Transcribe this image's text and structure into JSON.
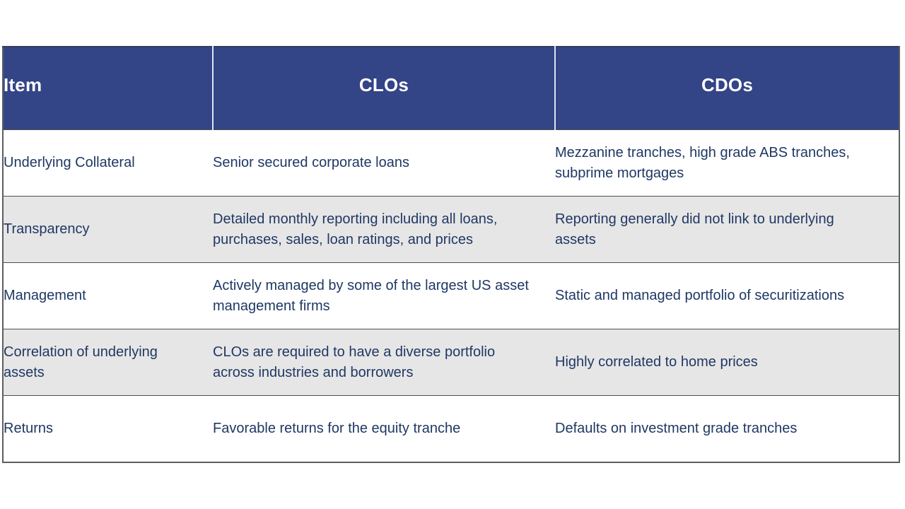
{
  "colors": {
    "header_bg": "#334487",
    "header_text": "#ffffff",
    "header_divider": "#dde3f0",
    "body_text": "#1f3864",
    "row_bg": "#ffffff",
    "row_alt_bg": "#e7e6e6",
    "border": "#5e5e5e",
    "row_line": "#4f4f4f"
  },
  "table": {
    "columns": [
      {
        "label": "Item"
      },
      {
        "label": "CLOs"
      },
      {
        "label": "CDOs"
      }
    ],
    "rows": [
      {
        "item": "Underlying Collateral",
        "clos": "Senior secured corporate loans",
        "cdos": "Mezzanine tranches, high grade ABS tranches,\nsubprime mortgages"
      },
      {
        "item": "Transparency",
        "clos": "Detailed monthly reporting including all loans,\npurchases, sales, loan ratings, and prices",
        "cdos": "Reporting generally did not link to underlying\nassets"
      },
      {
        "item": "Management",
        "clos": "Actively managed by some of the largest US asset\nmanagement firms",
        "cdos": "Static and managed portfolio of securitizations"
      },
      {
        "item": "Correlation of underlying\nassets",
        "clos": "CLOs are required to have a diverse portfolio\nacross industries and borrowers",
        "cdos": "Highly correlated to home prices"
      },
      {
        "item": "Returns",
        "clos": "Favorable returns for the equity tranche",
        "cdos": "Defaults on investment grade tranches"
      }
    ]
  }
}
